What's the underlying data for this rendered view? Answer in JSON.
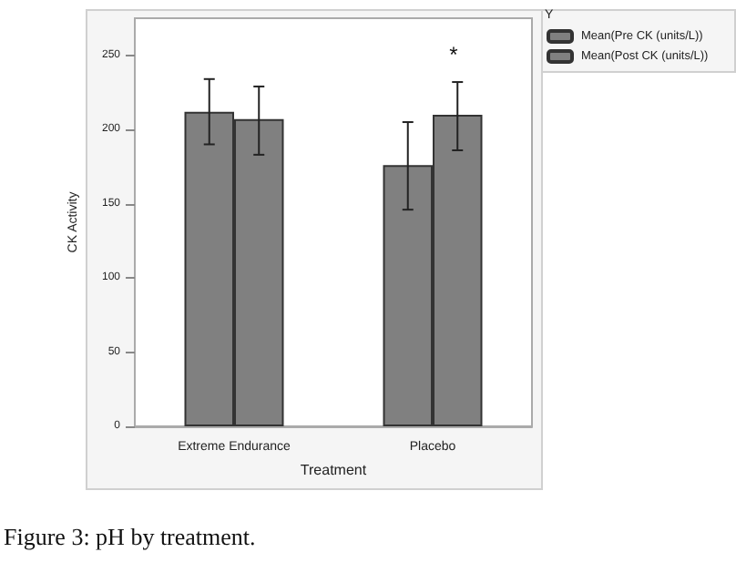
{
  "chart_data": {
    "type": "bar",
    "xlabel": "Treatment",
    "ylabel": "CK Activity",
    "legend_title": "Y",
    "categories": [
      "Extreme Endurance",
      "Placebo"
    ],
    "series": [
      {
        "name": "Mean(Pre CK (units/L))",
        "color": "#808080",
        "values": [
          212,
          176
        ],
        "errors": [
          [
            190,
            234
          ],
          [
            146,
            205
          ]
        ]
      },
      {
        "name": "Mean(Post CK (units/L))",
        "color": "#808080",
        "values": [
          207,
          210
        ],
        "errors": [
          [
            183,
            229
          ],
          [
            186,
            232
          ]
        ]
      }
    ],
    "ylim": [
      0,
      275
    ],
    "yticks": [
      0,
      50,
      100,
      150,
      200,
      250
    ],
    "grid": false,
    "legend": "top right",
    "annotations": [
      "Figure 3: pH by treatment.",
      "*"
    ]
  }
}
